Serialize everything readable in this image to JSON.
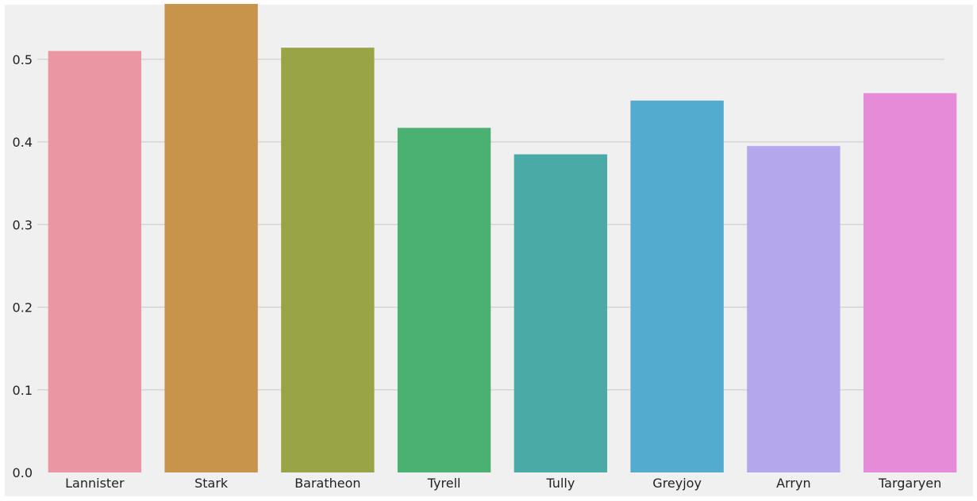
{
  "chart_data": {
    "type": "bar",
    "title": "",
    "xlabel": "",
    "ylabel": "",
    "categories": [
      "Lannister",
      "Stark",
      "Baratheon",
      "Tyrell",
      "Tully",
      "Greyjoy",
      "Arryn",
      "Targaryen"
    ],
    "values": [
      0.51,
      0.567,
      0.514,
      0.417,
      0.385,
      0.45,
      0.395,
      0.459
    ],
    "colors": [
      "#ea96a3",
      "#c8944c",
      "#99a447",
      "#4bb172",
      "#4aaaa5",
      "#53abcf",
      "#b5a7ec",
      "#e68bd8"
    ],
    "ylim": [
      0,
      0.565
    ],
    "yticks": [
      0.0,
      0.1,
      0.2,
      0.3,
      0.4,
      0.5
    ],
    "ytick_labels": [
      "0.0",
      "0.1",
      "0.2",
      "0.3",
      "0.4",
      "0.5"
    ],
    "grid": "horizontal",
    "background": "#f0f0f0",
    "grid_color": "#d0d0d0"
  }
}
